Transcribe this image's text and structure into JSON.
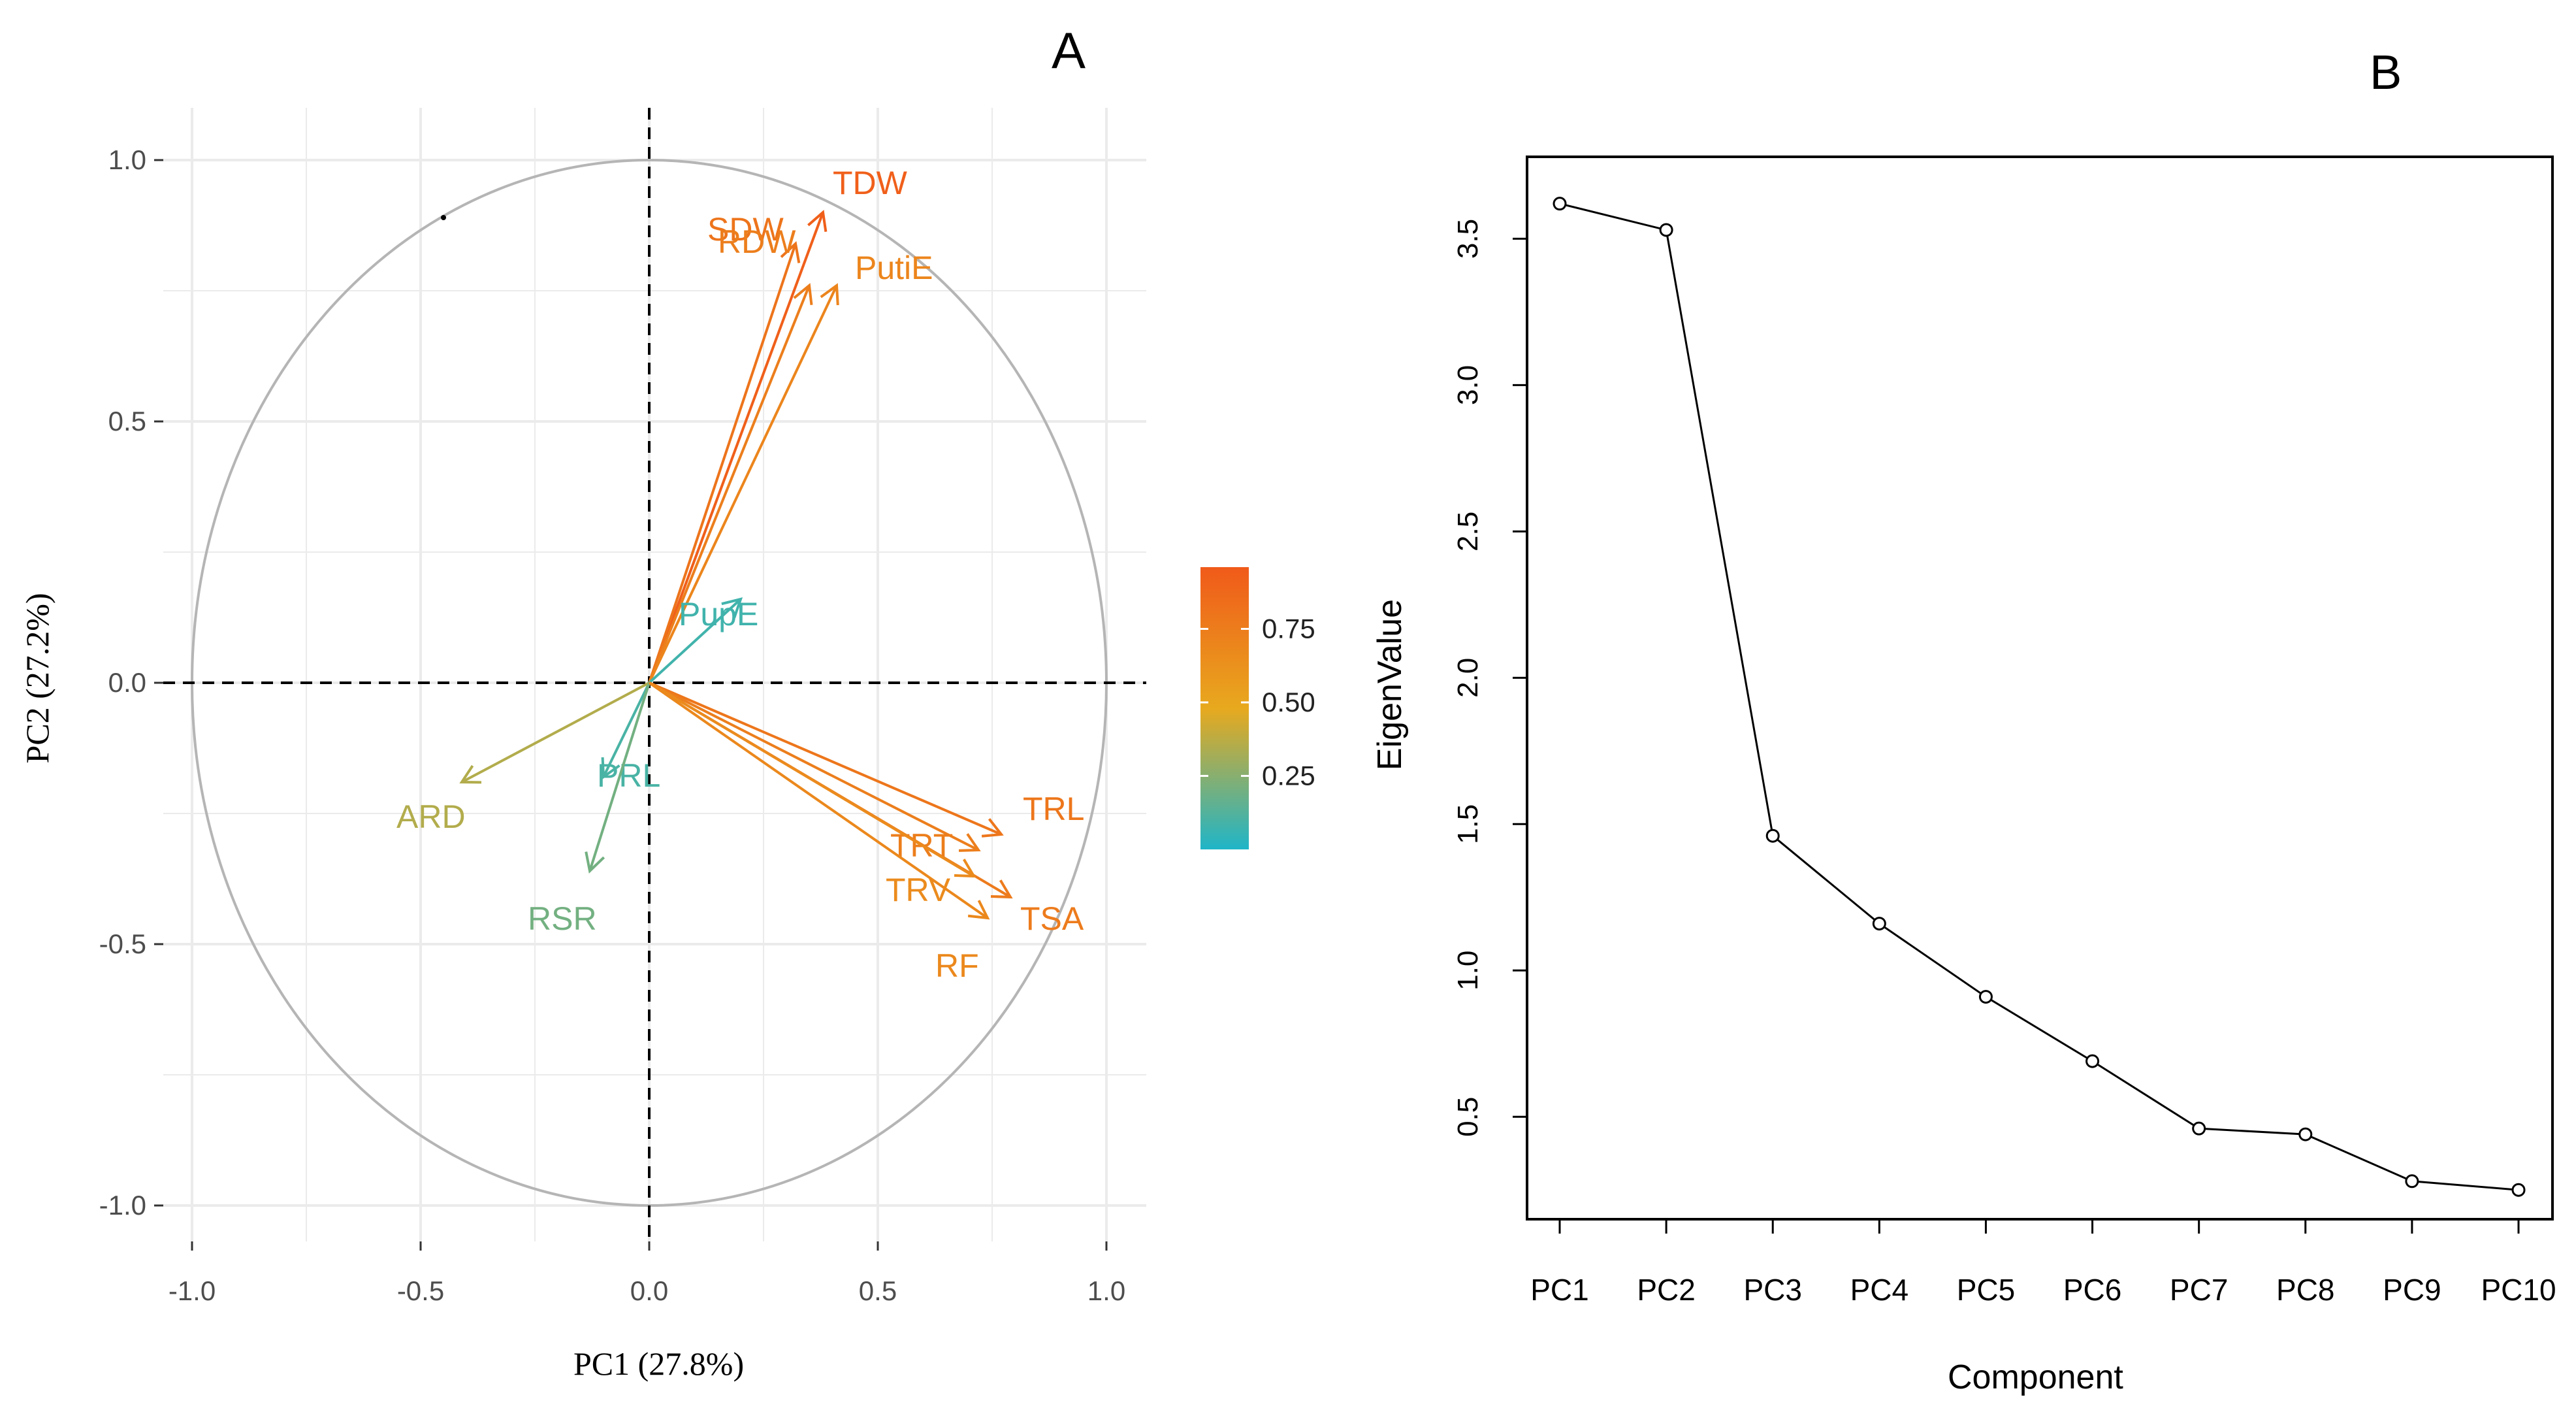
{
  "panels": {
    "a_label": "A",
    "b_label": "B"
  },
  "colors": {
    "scale_low": "#1fb5c8",
    "scale_mid": "#e8a91e",
    "scale_high": "#f05a1a",
    "grid": "#ebebeb",
    "circle": "#b5b5b5"
  },
  "chart_data": [
    {
      "type": "pca-variables",
      "panel": "A",
      "xlabel": "PC1 (27.8%)",
      "ylabel": "PC2 (27.2%)",
      "xlim": [
        -1.0,
        1.0
      ],
      "ylim": [
        -1.0,
        1.0
      ],
      "x_ticks": [
        "-1.0",
        "-0.5",
        "0.0",
        "0.5",
        "1.0"
      ],
      "y_ticks": [
        "1.0",
        "0.5",
        "0.0",
        "-0.5",
        "-1.0"
      ],
      "grid": true,
      "legend": {
        "position": "right",
        "ticks": [
          "0.75",
          "0.50",
          "0.25"
        ],
        "range": [
          0.0,
          0.96
        ]
      },
      "variables": [
        {
          "name": "TDW",
          "x": 0.38,
          "y": 0.9,
          "contrib": 0.93
        },
        {
          "name": "SDW",
          "x": 0.32,
          "y": 0.84,
          "contrib": 0.8
        },
        {
          "name": "RDW",
          "x": 0.35,
          "y": 0.76,
          "contrib": 0.74
        },
        {
          "name": "PutiE",
          "x": 0.41,
          "y": 0.76,
          "contrib": 0.7
        },
        {
          "name": "PupE",
          "x": 0.2,
          "y": 0.16,
          "contrib": 0.08
        },
        {
          "name": "PRL",
          "x": -0.1,
          "y": -0.18,
          "contrib": 0.1
        },
        {
          "name": "ARD",
          "x": -0.41,
          "y": -0.19,
          "contrib": 0.35
        },
        {
          "name": "RSR",
          "x": -0.13,
          "y": -0.36,
          "contrib": 0.2
        },
        {
          "name": "TRL",
          "x": 0.77,
          "y": -0.29,
          "contrib": 0.79
        },
        {
          "name": "TRT",
          "x": 0.72,
          "y": -0.32,
          "contrib": 0.74
        },
        {
          "name": "TSA",
          "x": 0.79,
          "y": -0.41,
          "contrib": 0.76
        },
        {
          "name": "TRV",
          "x": 0.71,
          "y": -0.37,
          "contrib": 0.66
        },
        {
          "name": "RF",
          "x": 0.74,
          "y": -0.45,
          "contrib": 0.68
        }
      ]
    },
    {
      "type": "line",
      "panel": "B",
      "xlabel": "Component",
      "ylabel": "EigenValue",
      "categories": [
        "PC1",
        "PC2",
        "PC3",
        "PC4",
        "PC5",
        "PC6",
        "PC7",
        "PC8",
        "PC9",
        "PC10"
      ],
      "values": [
        3.62,
        3.53,
        1.46,
        1.16,
        0.91,
        0.69,
        0.46,
        0.44,
        0.28,
        0.25
      ],
      "ylim": [
        0.15,
        3.78
      ],
      "y_ticks": [
        "0.5",
        "1.0",
        "1.5",
        "2.0",
        "2.5",
        "3.0",
        "3.5"
      ],
      "grid": false
    }
  ]
}
